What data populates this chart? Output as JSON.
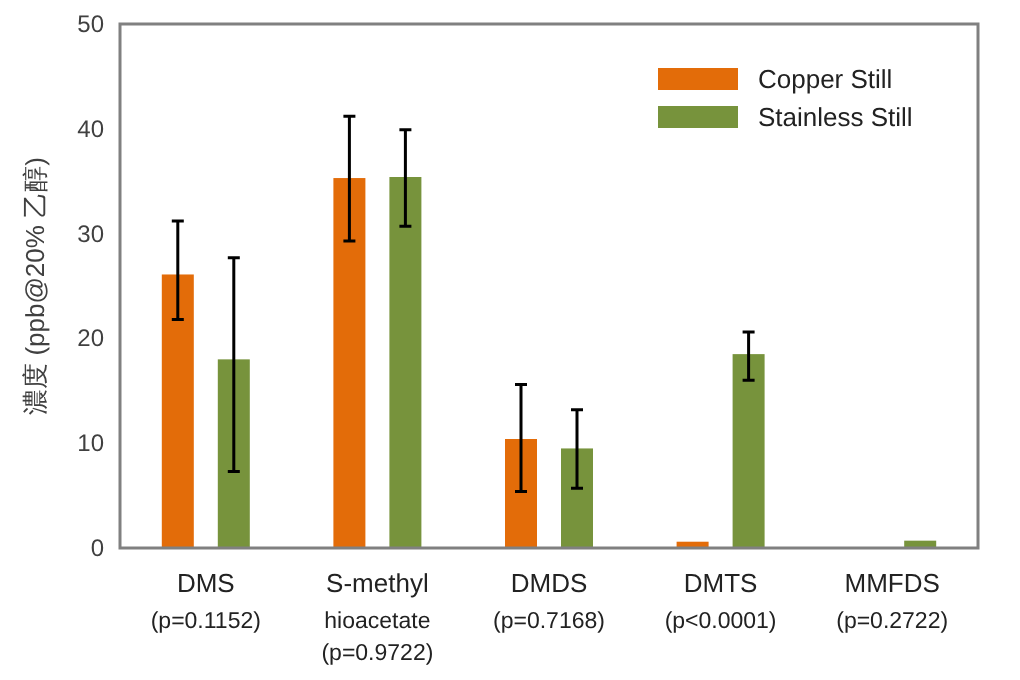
{
  "chart_data": {
    "type": "bar",
    "ylabel": "濃度 (ppb@20% 乙醇)",
    "categories": [
      "DMS\n(p=0.1152)",
      "S-methyl\nhioacetate\n(p=0.9722)",
      "DMDS\n(p=0.7168)",
      "DMTS\n(p<0.0001)",
      "MMFDS\n(p=0.2722)"
    ],
    "series": [
      {
        "name": "Copper Still",
        "color": "#e36c09",
        "values": [
          26.1,
          35.3,
          10.4,
          0.6,
          0
        ],
        "errors": [
          [
            21.8,
            31.2
          ],
          [
            29.3,
            41.2
          ],
          [
            5.4,
            15.6
          ],
          null,
          null
        ]
      },
      {
        "name": "Stainless Still",
        "color": "#77933c",
        "values": [
          18,
          35.4,
          9.5,
          18.5,
          0.7
        ],
        "errors": [
          [
            7.3,
            27.7
          ],
          [
            30.7,
            39.9
          ],
          [
            5.7,
            13.2
          ],
          [
            16,
            20.6
          ],
          null
        ]
      }
    ],
    "ylim": [
      0,
      50
    ],
    "yticks": [
      0,
      10,
      20,
      30,
      40,
      50
    ],
    "legend": "top right"
  }
}
